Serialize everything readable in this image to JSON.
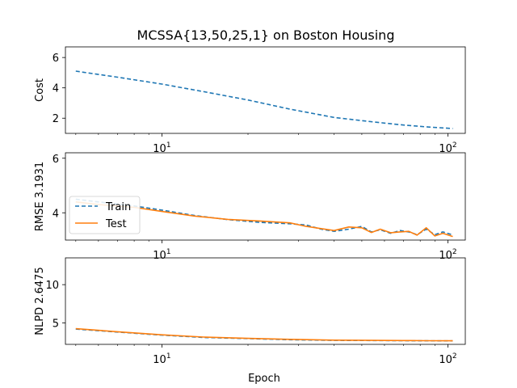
{
  "title": "MCSSA{13,50,25,1} on Boston Housing",
  "xlabel": "Epoch",
  "colors": {
    "train": "#1f77b4",
    "test": "#ff7f0e"
  },
  "legend": {
    "train": "Train",
    "test": "Test",
    "location": "center-left of middle panel"
  },
  "chart_data": [
    {
      "type": "line",
      "ylabel": "Cost",
      "xscale": "log",
      "xlim": [
        4.6,
        115
      ],
      "ylim": [
        1.0,
        6.7
      ],
      "yticks": [
        2,
        4,
        6
      ],
      "xticks": [
        10,
        100
      ],
      "xtick_labels": [
        "10¹",
        "10²"
      ],
      "series": [
        {
          "id": "train",
          "style": "dashed",
          "x": [
            5,
            7,
            10,
            14,
            20,
            28,
            40,
            55,
            70,
            85,
            104
          ],
          "y": [
            5.1,
            4.7,
            4.25,
            3.75,
            3.2,
            2.6,
            2.05,
            1.75,
            1.55,
            1.42,
            1.32
          ]
        }
      ]
    },
    {
      "type": "line",
      "ylabel": "RMSE 3.1931",
      "xscale": "log",
      "xlim": [
        4.6,
        115
      ],
      "ylim": [
        3.0,
        6.2
      ],
      "yticks": [
        4,
        6
      ],
      "xticks": [
        10,
        100
      ],
      "xtick_labels": [
        "10¹",
        "10²"
      ],
      "series": [
        {
          "id": "train",
          "name": "Train",
          "style": "dashed",
          "x": [
            5,
            6,
            8,
            10,
            13,
            17,
            22,
            28,
            32,
            36,
            40,
            45,
            50,
            54,
            58,
            63,
            68,
            73,
            78,
            84,
            90,
            96,
            104
          ],
          "y": [
            4.5,
            4.4,
            4.25,
            4.1,
            3.9,
            3.75,
            3.65,
            3.6,
            3.55,
            3.4,
            3.32,
            3.4,
            3.5,
            3.3,
            3.38,
            3.25,
            3.35,
            3.3,
            3.2,
            3.4,
            3.2,
            3.3,
            3.19
          ]
        },
        {
          "id": "test",
          "name": "Test",
          "style": "solid",
          "x": [
            5,
            6,
            8,
            10,
            13,
            17,
            22,
            28,
            32,
            36,
            40,
            45,
            50,
            54,
            58,
            63,
            68,
            73,
            78,
            84,
            90,
            96,
            104
          ],
          "y": [
            4.4,
            4.3,
            4.2,
            4.05,
            3.88,
            3.76,
            3.7,
            3.63,
            3.5,
            3.42,
            3.35,
            3.48,
            3.45,
            3.28,
            3.4,
            3.27,
            3.3,
            3.32,
            3.18,
            3.45,
            3.15,
            3.25,
            3.13
          ]
        }
      ]
    },
    {
      "type": "line",
      "ylabel": "NLPD 2.6475",
      "xscale": "log",
      "xlim": [
        4.6,
        115
      ],
      "ylim": [
        2.2,
        13.5
      ],
      "yticks": [
        5,
        10
      ],
      "xticks": [
        10,
        100
      ],
      "xtick_labels": [
        "10¹",
        "10²"
      ],
      "series": [
        {
          "id": "train",
          "style": "dashed",
          "x": [
            5,
            7,
            10,
            14,
            20,
            28,
            40,
            55,
            70,
            85,
            104
          ],
          "y": [
            4.2,
            3.8,
            3.4,
            3.1,
            2.95,
            2.8,
            2.72,
            2.7,
            2.68,
            2.66,
            2.65
          ]
        },
        {
          "id": "test",
          "style": "solid",
          "x": [
            5,
            7,
            10,
            14,
            20,
            28,
            40,
            55,
            70,
            85,
            104
          ],
          "y": [
            4.25,
            3.85,
            3.45,
            3.15,
            2.98,
            2.85,
            2.75,
            2.72,
            2.7,
            2.68,
            2.66
          ]
        }
      ]
    }
  ]
}
